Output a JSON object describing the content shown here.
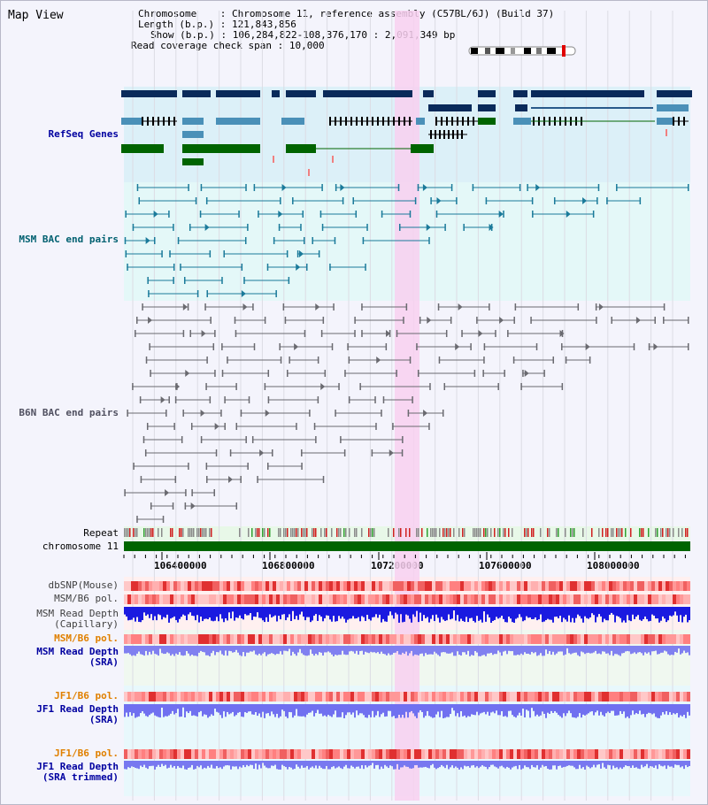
{
  "window_title": "Map View",
  "info": {
    "chromosome_key": "Chromosome",
    "chromosome_value": "Chromosome 11, reference assembly (C57BL/6J) (Build 37)",
    "length_key": "Length (b.p.)",
    "length_value": "121,843,856",
    "show_key": "Show (b.p.)",
    "show_value": "106,284,822-108,376,170 : 2,091,349 bp",
    "coverage_key": "Read coverage check span",
    "coverage_value": "10,000"
  },
  "tracks": {
    "refseq": "RefSeq Genes",
    "msm_bac": "MSM BAC end pairs",
    "b6n_bac": "B6N BAC end pairs",
    "repeat": "Repeat",
    "chromosome": "chromosome 11",
    "dbsnp": "dbSNP(Mouse)",
    "msm_b6_pol_1": "MSM/B6 pol.",
    "msm_depth_cap_1": "MSM Read Depth",
    "msm_depth_cap_2": "(Capillary)",
    "msm_b6_pol_2": "MSM/B6 pol.",
    "msm_depth_sra_1": "MSM Read Depth",
    "msm_depth_sra_2": "(SRA)",
    "jf1_b6_pol_1": "JF1/B6 pol.",
    "jf1_depth_sra_1": "JF1 Read Depth",
    "jf1_depth_sra_2": "(SRA)",
    "jf1_b6_pol_2": "JF1/B6 pol.",
    "jf1_depth_trim_1": "JF1 Read Depth",
    "jf1_depth_trim_2": "(SRA trimmed)"
  },
  "axis": {
    "ticks": [
      "106400000",
      "106800000",
      "107200000",
      "107600000",
      "108000000"
    ]
  },
  "colors": {
    "label_blue": "#0000a0",
    "label_teal": "#006070",
    "label_orange": "#e08000",
    "highlight": "#f8d0f0",
    "gene_dark": "#0a2a5a",
    "gene_mid": "#4a90b8",
    "gene_green": "#006400"
  }
}
